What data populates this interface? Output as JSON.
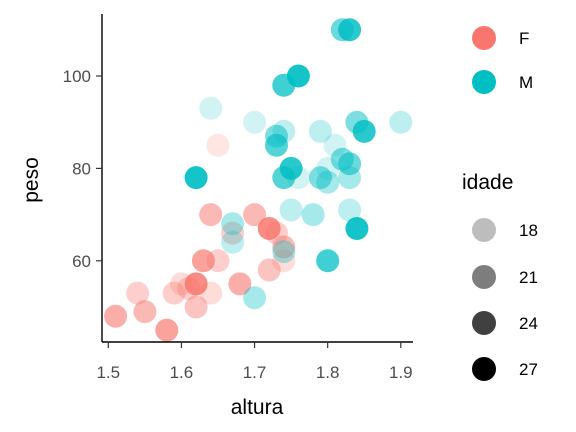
{
  "chart_data": {
    "type": "scatter",
    "xlabel": "altura",
    "ylabel": "peso",
    "xlim": [
      1.49,
      1.92
    ],
    "ylim": [
      43,
      113
    ],
    "x_ticks": [
      "1.5",
      "1.6",
      "1.7",
      "1.8",
      "1.9"
    ],
    "y_ticks": [
      "60",
      "80",
      "100"
    ],
    "grid": false,
    "legends": {
      "color": {
        "title": "",
        "items": [
          {
            "label": "F",
            "color": "#F8766D"
          },
          {
            "label": "M",
            "color": "#00BFC4"
          }
        ]
      },
      "alpha": {
        "title": "idade",
        "items": [
          {
            "label": "18",
            "level": 18
          },
          {
            "label": "21",
            "level": 21
          },
          {
            "label": "24",
            "level": 24
          },
          {
            "label": "27",
            "level": 27
          }
        ]
      }
    },
    "series": [
      {
        "name": "F",
        "points": [
          {
            "x": 1.51,
            "y": 48,
            "idade": 22
          },
          {
            "x": 1.54,
            "y": 53,
            "idade": 19
          },
          {
            "x": 1.55,
            "y": 49,
            "idade": 21
          },
          {
            "x": 1.58,
            "y": 45,
            "idade": 23
          },
          {
            "x": 1.59,
            "y": 53,
            "idade": 19
          },
          {
            "x": 1.6,
            "y": 55,
            "idade": 18
          },
          {
            "x": 1.61,
            "y": 54,
            "idade": 19
          },
          {
            "x": 1.62,
            "y": 55,
            "idade": 25
          },
          {
            "x": 1.62,
            "y": 50,
            "idade": 20
          },
          {
            "x": 1.63,
            "y": 60,
            "idade": 23
          },
          {
            "x": 1.64,
            "y": 70,
            "idade": 21
          },
          {
            "x": 1.64,
            "y": 53,
            "idade": 18
          },
          {
            "x": 1.65,
            "y": 60,
            "idade": 19
          },
          {
            "x": 1.65,
            "y": 85,
            "idade": 17
          },
          {
            "x": 1.67,
            "y": 66,
            "idade": 19
          },
          {
            "x": 1.68,
            "y": 55,
            "idade": 22
          },
          {
            "x": 1.7,
            "y": 70,
            "idade": 21
          },
          {
            "x": 1.72,
            "y": 58,
            "idade": 20
          },
          {
            "x": 1.72,
            "y": 67,
            "idade": 25
          },
          {
            "x": 1.73,
            "y": 66,
            "idade": 19
          },
          {
            "x": 1.74,
            "y": 63,
            "idade": 21
          },
          {
            "x": 1.74,
            "y": 60,
            "idade": 18
          }
        ]
      },
      {
        "name": "M",
        "points": [
          {
            "x": 1.62,
            "y": 78,
            "idade": 26
          },
          {
            "x": 1.64,
            "y": 93,
            "idade": 17
          },
          {
            "x": 1.67,
            "y": 68,
            "idade": 19
          },
          {
            "x": 1.67,
            "y": 64,
            "idade": 18
          },
          {
            "x": 1.7,
            "y": 52,
            "idade": 19
          },
          {
            "x": 1.7,
            "y": 90,
            "idade": 17
          },
          {
            "x": 1.73,
            "y": 87,
            "idade": 21
          },
          {
            "x": 1.73,
            "y": 85,
            "idade": 23
          },
          {
            "x": 1.74,
            "y": 98,
            "idade": 24
          },
          {
            "x": 1.74,
            "y": 88,
            "idade": 18
          },
          {
            "x": 1.74,
            "y": 78,
            "idade": 23
          },
          {
            "x": 1.75,
            "y": 80,
            "idade": 25
          },
          {
            "x": 1.74,
            "y": 62,
            "idade": 19
          },
          {
            "x": 1.75,
            "y": 71,
            "idade": 18
          },
          {
            "x": 1.76,
            "y": 100,
            "idade": 26
          },
          {
            "x": 1.76,
            "y": 78,
            "idade": 17
          },
          {
            "x": 1.78,
            "y": 70,
            "idade": 19
          },
          {
            "x": 1.79,
            "y": 88,
            "idade": 18
          },
          {
            "x": 1.79,
            "y": 78,
            "idade": 21
          },
          {
            "x": 1.8,
            "y": 77,
            "idade": 19
          },
          {
            "x": 1.8,
            "y": 80,
            "idade": 17
          },
          {
            "x": 1.8,
            "y": 60,
            "idade": 24
          },
          {
            "x": 1.81,
            "y": 85,
            "idade": 17
          },
          {
            "x": 1.82,
            "y": 82,
            "idade": 21
          },
          {
            "x": 1.82,
            "y": 110,
            "idade": 22
          },
          {
            "x": 1.83,
            "y": 110,
            "idade": 25
          },
          {
            "x": 1.83,
            "y": 81,
            "idade": 22
          },
          {
            "x": 1.83,
            "y": 78,
            "idade": 19
          },
          {
            "x": 1.83,
            "y": 71,
            "idade": 18
          },
          {
            "x": 1.84,
            "y": 90,
            "idade": 21
          },
          {
            "x": 1.84,
            "y": 67,
            "idade": 26
          },
          {
            "x": 1.85,
            "y": 88,
            "idade": 25
          },
          {
            "x": 1.9,
            "y": 90,
            "idade": 18
          }
        ]
      }
    ]
  }
}
